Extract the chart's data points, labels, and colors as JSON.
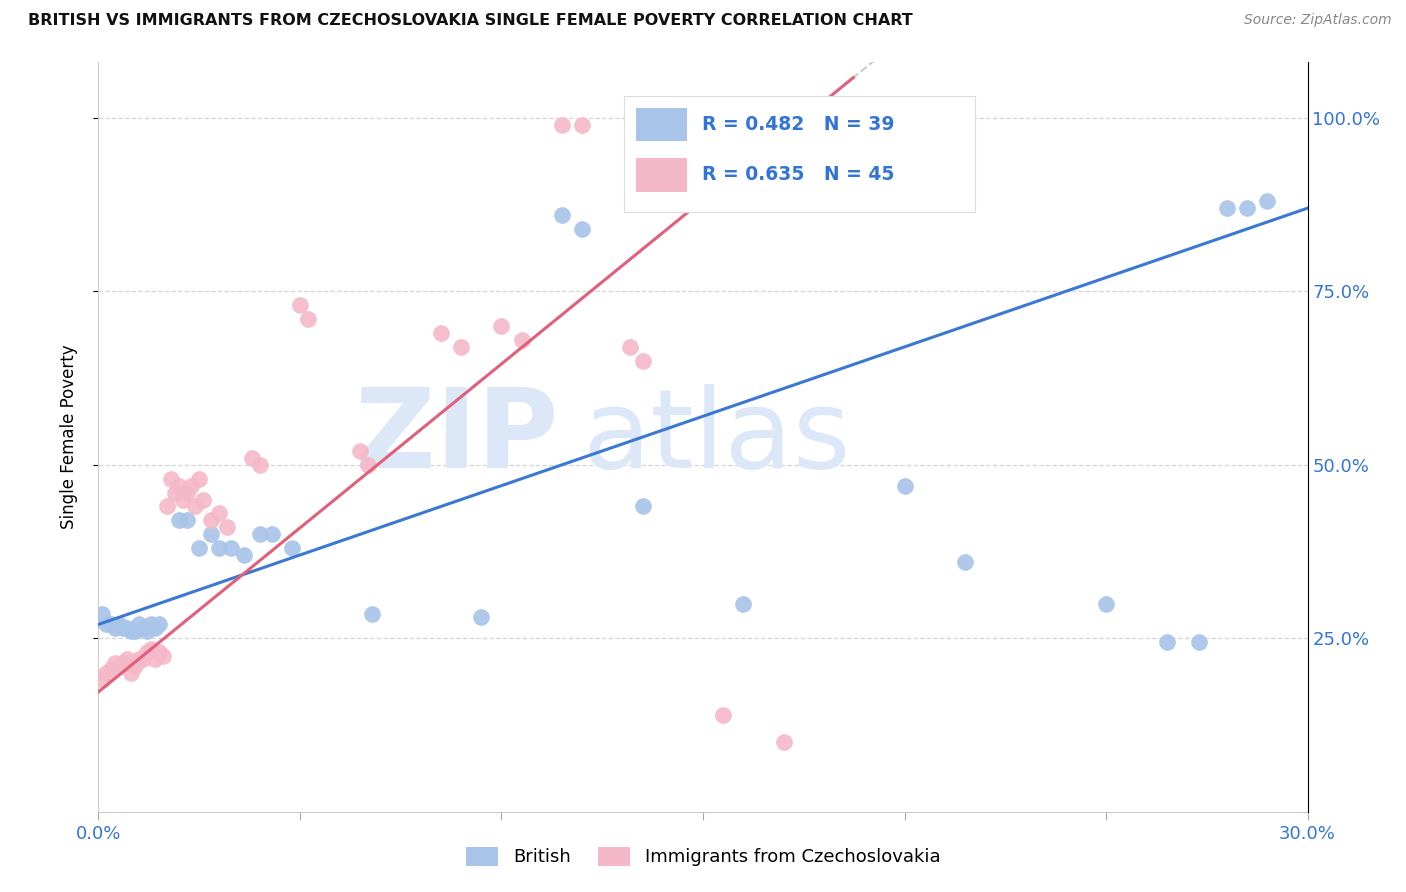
{
  "title": "BRITISH VS IMMIGRANTS FROM CZECHOSLOVAKIA SINGLE FEMALE POVERTY CORRELATION CHART",
  "source": "Source: ZipAtlas.com",
  "ylabel": "Single Female Poverty",
  "xmin": 0.0,
  "xmax": 0.3,
  "ymin": 0.0,
  "ymax": 1.08,
  "british_color": "#a8c4e8",
  "british_line_color": "#3a78d4",
  "czech_color": "#f5b8c8",
  "czech_line_color": "#e0607a",
  "british_R": 0.482,
  "british_N": 39,
  "czech_R": 0.635,
  "czech_N": 45,
  "text_color": "#3375d6",
  "watermark_color": "#dce8f8",
  "british_x": [
    0.001,
    0.002,
    0.003,
    0.004,
    0.005,
    0.006,
    0.007,
    0.008,
    0.009,
    0.01,
    0.011,
    0.012,
    0.013,
    0.014,
    0.015,
    0.02,
    0.022,
    0.025,
    0.028,
    0.03,
    0.033,
    0.036,
    0.04,
    0.043,
    0.048,
    0.068,
    0.095,
    0.115,
    0.12,
    0.135,
    0.16,
    0.2,
    0.215,
    0.25,
    0.265,
    0.273,
    0.28,
    0.285,
    0.29
  ],
  "british_y": [
    0.285,
    0.27,
    0.27,
    0.265,
    0.27,
    0.265,
    0.265,
    0.26,
    0.26,
    0.27,
    0.265,
    0.26,
    0.27,
    0.265,
    0.27,
    0.42,
    0.42,
    0.38,
    0.4,
    0.38,
    0.38,
    0.37,
    0.4,
    0.4,
    0.38,
    0.285,
    0.28,
    0.86,
    0.84,
    0.44,
    0.3,
    0.47,
    0.36,
    0.3,
    0.245,
    0.245,
    0.87,
    0.87,
    0.88
  ],
  "czech_x": [
    0.001,
    0.002,
    0.003,
    0.004,
    0.005,
    0.006,
    0.007,
    0.008,
    0.009,
    0.01,
    0.011,
    0.012,
    0.013,
    0.014,
    0.015,
    0.016,
    0.017,
    0.018,
    0.019,
    0.02,
    0.021,
    0.022,
    0.023,
    0.024,
    0.025,
    0.026,
    0.028,
    0.03,
    0.032,
    0.038,
    0.04,
    0.05,
    0.052,
    0.065,
    0.067,
    0.085,
    0.09,
    0.1,
    0.105,
    0.115,
    0.12,
    0.132,
    0.135,
    0.155,
    0.17
  ],
  "czech_y": [
    0.19,
    0.2,
    0.205,
    0.215,
    0.21,
    0.215,
    0.22,
    0.2,
    0.21,
    0.22,
    0.22,
    0.23,
    0.235,
    0.22,
    0.23,
    0.225,
    0.44,
    0.48,
    0.46,
    0.47,
    0.45,
    0.46,
    0.47,
    0.44,
    0.48,
    0.45,
    0.42,
    0.43,
    0.41,
    0.51,
    0.5,
    0.73,
    0.71,
    0.52,
    0.5,
    0.69,
    0.67,
    0.7,
    0.68,
    0.99,
    0.99,
    0.67,
    0.65,
    0.14,
    0.1
  ]
}
